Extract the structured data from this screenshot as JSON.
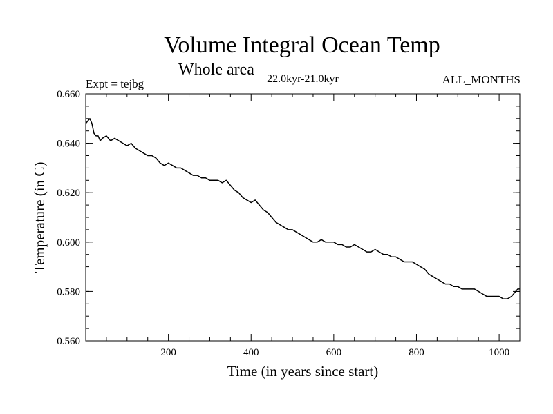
{
  "chart_data": {
    "type": "line",
    "title": "Volume Integral Ocean Temp",
    "subtitle": "Whole area",
    "period_label": "22.0kyr-21.0kyr",
    "left_label": "Expt = tejbg",
    "right_label": "ALL_MONTHS",
    "xlabel": "Time (in years since start)",
    "ylabel": "Temperature (in C)",
    "xlim": [
      0,
      1050
    ],
    "ylim": [
      0.56,
      0.66
    ],
    "x_ticks": [
      200,
      400,
      600,
      800,
      1000
    ],
    "x_tick_labels": [
      "200",
      "400",
      "600",
      "800",
      "1000"
    ],
    "y_ticks": [
      0.56,
      0.58,
      0.6,
      0.62,
      0.64,
      0.66
    ],
    "y_tick_labels": [
      "0.560",
      "0.580",
      "0.600",
      "0.620",
      "0.640",
      "0.660"
    ],
    "grid": false,
    "series": [
      {
        "name": "Volume Integral Ocean Temp",
        "color": "#000000",
        "x": [
          0,
          5,
          10,
          15,
          20,
          25,
          30,
          35,
          40,
          50,
          60,
          70,
          80,
          90,
          100,
          110,
          120,
          130,
          140,
          150,
          160,
          170,
          180,
          190,
          200,
          210,
          220,
          230,
          240,
          250,
          260,
          270,
          280,
          290,
          300,
          310,
          320,
          330,
          340,
          350,
          360,
          370,
          380,
          390,
          400,
          410,
          420,
          430,
          440,
          450,
          460,
          470,
          480,
          490,
          500,
          510,
          520,
          530,
          540,
          550,
          560,
          570,
          580,
          590,
          600,
          610,
          620,
          630,
          640,
          650,
          660,
          670,
          680,
          690,
          700,
          710,
          720,
          730,
          740,
          750,
          760,
          770,
          780,
          790,
          800,
          810,
          820,
          830,
          840,
          850,
          860,
          870,
          880,
          890,
          900,
          910,
          920,
          930,
          940,
          950,
          960,
          970,
          980,
          990,
          1000,
          1010,
          1020,
          1030,
          1035,
          1040,
          1045,
          1050
        ],
        "values": [
          0.648,
          0.649,
          0.65,
          0.648,
          0.644,
          0.643,
          0.643,
          0.641,
          0.642,
          0.643,
          0.641,
          0.642,
          0.641,
          0.64,
          0.639,
          0.64,
          0.638,
          0.637,
          0.636,
          0.635,
          0.635,
          0.634,
          0.632,
          0.631,
          0.632,
          0.631,
          0.63,
          0.63,
          0.629,
          0.628,
          0.627,
          0.627,
          0.626,
          0.626,
          0.625,
          0.625,
          0.625,
          0.624,
          0.625,
          0.623,
          0.621,
          0.62,
          0.618,
          0.617,
          0.616,
          0.617,
          0.615,
          0.613,
          0.612,
          0.61,
          0.608,
          0.607,
          0.606,
          0.605,
          0.605,
          0.604,
          0.603,
          0.602,
          0.601,
          0.6,
          0.6,
          0.601,
          0.6,
          0.6,
          0.6,
          0.599,
          0.599,
          0.598,
          0.598,
          0.599,
          0.598,
          0.597,
          0.596,
          0.596,
          0.597,
          0.596,
          0.595,
          0.595,
          0.594,
          0.594,
          0.593,
          0.592,
          0.592,
          0.592,
          0.591,
          0.59,
          0.589,
          0.587,
          0.586,
          0.585,
          0.584,
          0.583,
          0.583,
          0.582,
          0.582,
          0.581,
          0.581,
          0.581,
          0.581,
          0.58,
          0.579,
          0.578,
          0.578,
          0.578,
          0.578,
          0.577,
          0.577,
          0.578,
          0.579,
          0.58,
          0.581,
          0.581
        ]
      }
    ]
  }
}
